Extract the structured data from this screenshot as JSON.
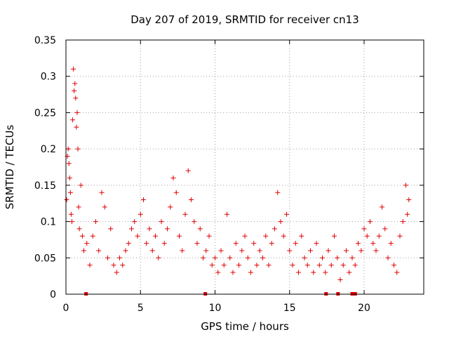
{
  "chart_data": {
    "type": "scatter",
    "title": "Day 207 of 2019, SRMTID for receiver cn13",
    "xlabel": "GPS time / hours",
    "ylabel": "SRMTID / TECUs",
    "xlim": [
      0,
      24
    ],
    "ylim": [
      0,
      0.35
    ],
    "xticks": [
      0,
      5,
      10,
      15,
      20
    ],
    "xtick_labels": [
      "0",
      "5",
      "10",
      "15",
      "20"
    ],
    "yticks": [
      0,
      0.05,
      0.1,
      0.15,
      0.2,
      0.25,
      0.3,
      0.35
    ],
    "ytick_labels": [
      "0",
      "0.05",
      "0.1",
      "0.15",
      "0.2",
      "0.25",
      "0.3",
      "0.35"
    ],
    "grid": true,
    "marker": "+",
    "color": "#e00000",
    "series": [
      {
        "name": "SRMTID",
        "points": [
          [
            0.05,
            0.13
          ],
          [
            0.1,
            0.19
          ],
          [
            0.15,
            0.2
          ],
          [
            0.2,
            0.18
          ],
          [
            0.25,
            0.16
          ],
          [
            0.3,
            0.14
          ],
          [
            0.35,
            0.11
          ],
          [
            0.4,
            0.1
          ],
          [
            0.45,
            0.24
          ],
          [
            0.5,
            0.31
          ],
          [
            0.55,
            0.28
          ],
          [
            0.6,
            0.29
          ],
          [
            0.65,
            0.27
          ],
          [
            0.7,
            0.23
          ],
          [
            0.75,
            0.25
          ],
          [
            0.8,
            0.2
          ],
          [
            0.85,
            0.12
          ],
          [
            0.9,
            0.09
          ],
          [
            1.0,
            0.15
          ],
          [
            1.1,
            0.08
          ],
          [
            1.2,
            0.06
          ],
          [
            1.4,
            0.07
          ],
          [
            1.6,
            0.04
          ],
          [
            1.8,
            0.08
          ],
          [
            2.0,
            0.1
          ],
          [
            2.2,
            0.06
          ],
          [
            2.4,
            0.14
          ],
          [
            2.6,
            0.12
          ],
          [
            2.8,
            0.05
          ],
          [
            3.0,
            0.09
          ],
          [
            3.2,
            0.04
          ],
          [
            3.4,
            0.03
          ],
          [
            3.6,
            0.05
          ],
          [
            3.8,
            0.04
          ],
          [
            4.0,
            0.06
          ],
          [
            4.2,
            0.07
          ],
          [
            4.4,
            0.09
          ],
          [
            4.6,
            0.1
          ],
          [
            4.8,
            0.08
          ],
          [
            5.0,
            0.11
          ],
          [
            5.2,
            0.13
          ],
          [
            5.4,
            0.07
          ],
          [
            5.6,
            0.09
          ],
          [
            5.8,
            0.06
          ],
          [
            6.0,
            0.08
          ],
          [
            6.2,
            0.05
          ],
          [
            6.4,
            0.1
          ],
          [
            6.6,
            0.07
          ],
          [
            6.8,
            0.09
          ],
          [
            7.0,
            0.12
          ],
          [
            7.2,
            0.16
          ],
          [
            7.4,
            0.14
          ],
          [
            7.6,
            0.08
          ],
          [
            7.8,
            0.06
          ],
          [
            8.0,
            0.11
          ],
          [
            8.2,
            0.17
          ],
          [
            8.4,
            0.13
          ],
          [
            8.6,
            0.1
          ],
          [
            8.8,
            0.07
          ],
          [
            9.0,
            0.09
          ],
          [
            9.2,
            0.05
          ],
          [
            9.4,
            0.06
          ],
          [
            9.6,
            0.08
          ],
          [
            9.8,
            0.04
          ],
          [
            10.0,
            0.05
          ],
          [
            10.2,
            0.03
          ],
          [
            10.4,
            0.06
          ],
          [
            10.6,
            0.04
          ],
          [
            10.8,
            0.11
          ],
          [
            11.0,
            0.05
          ],
          [
            11.2,
            0.03
          ],
          [
            11.4,
            0.07
          ],
          [
            11.6,
            0.04
          ],
          [
            11.8,
            0.06
          ],
          [
            12.0,
            0.08
          ],
          [
            12.2,
            0.05
          ],
          [
            12.4,
            0.03
          ],
          [
            12.6,
            0.07
          ],
          [
            12.8,
            0.04
          ],
          [
            13.0,
            0.06
          ],
          [
            13.2,
            0.05
          ],
          [
            13.4,
            0.08
          ],
          [
            13.6,
            0.04
          ],
          [
            13.8,
            0.07
          ],
          [
            14.0,
            0.09
          ],
          [
            14.2,
            0.14
          ],
          [
            14.4,
            0.1
          ],
          [
            14.6,
            0.08
          ],
          [
            14.8,
            0.11
          ],
          [
            15.0,
            0.06
          ],
          [
            15.2,
            0.04
          ],
          [
            15.4,
            0.07
          ],
          [
            15.6,
            0.03
          ],
          [
            15.8,
            0.08
          ],
          [
            16.0,
            0.05
          ],
          [
            16.2,
            0.04
          ],
          [
            16.4,
            0.06
          ],
          [
            16.6,
            0.03
          ],
          [
            16.8,
            0.07
          ],
          [
            17.0,
            0.04
          ],
          [
            17.2,
            0.05
          ],
          [
            17.4,
            0.03
          ],
          [
            17.6,
            0.06
          ],
          [
            17.8,
            0.04
          ],
          [
            18.0,
            0.08
          ],
          [
            18.2,
            0.05
          ],
          [
            18.4,
            0.02
          ],
          [
            18.6,
            0.04
          ],
          [
            18.8,
            0.06
          ],
          [
            19.0,
            0.03
          ],
          [
            19.2,
            0.05
          ],
          [
            19.4,
            0.04
          ],
          [
            19.6,
            0.07
          ],
          [
            19.8,
            0.06
          ],
          [
            20.0,
            0.09
          ],
          [
            20.2,
            0.08
          ],
          [
            20.4,
            0.1
          ],
          [
            20.6,
            0.07
          ],
          [
            20.8,
            0.06
          ],
          [
            21.0,
            0.08
          ],
          [
            21.2,
            0.12
          ],
          [
            21.4,
            0.09
          ],
          [
            21.6,
            0.05
          ],
          [
            21.8,
            0.07
          ],
          [
            22.0,
            0.04
          ],
          [
            22.2,
            0.03
          ],
          [
            22.4,
            0.08
          ],
          [
            22.6,
            0.1
          ],
          [
            22.8,
            0.15
          ],
          [
            22.9,
            0.11
          ],
          [
            23.0,
            0.13
          ]
        ]
      }
    ],
    "zero_markers_x": [
      1.35,
      9.35,
      17.45,
      18.25,
      19.2,
      19.4
    ]
  }
}
